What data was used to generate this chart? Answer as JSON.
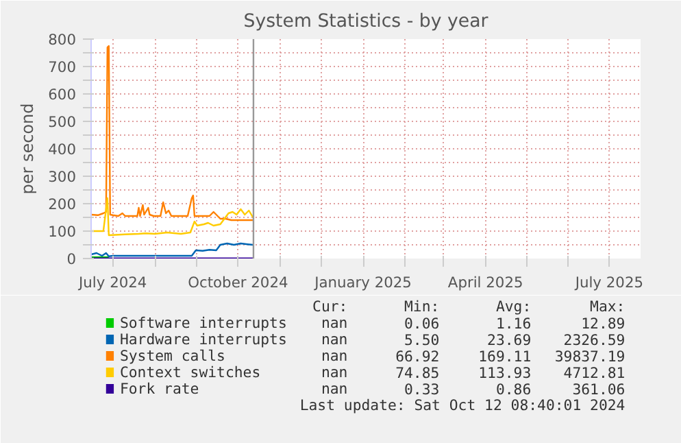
{
  "chart_data": {
    "type": "line",
    "title": "System Statistics - by year",
    "ylabel": "per second",
    "xlim": [
      "2024-06-15",
      "2025-07-24"
    ],
    "ylim": [
      0,
      800
    ],
    "yticks": [
      0,
      {
        "value": 50,
        "label": null
      },
      100,
      {
        "value": 150,
        "label": null
      },
      200,
      {
        "value": 250,
        "label": null
      },
      300,
      {
        "value": 350,
        "label": null
      },
      400,
      {
        "value": 450,
        "label": null
      },
      500,
      {
        "value": 550,
        "label": null
      },
      600,
      {
        "value": 650,
        "label": null
      },
      700,
      {
        "value": 750,
        "label": null
      },
      800
    ],
    "xticks": [
      {
        "value": "2024-07-01",
        "label": "July 2024"
      },
      {
        "value": "2024-08-01",
        "label": null
      },
      {
        "value": "2024-09-01",
        "label": null
      },
      {
        "value": "2024-10-01",
        "label": "October 2024"
      },
      {
        "value": "2024-11-01",
        "label": null
      },
      {
        "value": "2024-12-01",
        "label": null
      },
      {
        "value": "2025-01-01",
        "label": "January 2025"
      },
      {
        "value": "2025-02-01",
        "label": null
      },
      {
        "value": "2025-03-01",
        "label": null
      },
      {
        "value": "2025-04-01",
        "label": "April 2025"
      },
      {
        "value": "2025-05-01",
        "label": null
      },
      {
        "value": "2025-06-01",
        "label": null
      },
      {
        "value": "2025-07-01",
        "label": "July 2025"
      }
    ],
    "grid": true,
    "legend": "bottom",
    "line_style": "solid",
    "marker": "none",
    "ref_lines": [
      {
        "axis": "x",
        "value": "2024-10-12T08:40",
        "color": "#999999"
      }
    ],
    "series": [
      {
        "name": "Software interrupts",
        "color": "#00cc00",
        "x": [
          "2024-06-15",
          "2024-06-28"
        ],
        "values": [
          5,
          5
        ]
      },
      {
        "name": "Hardware interrupts",
        "color": "#0066b3",
        "x": [
          "2024-06-15",
          "2024-06-19",
          "2024-06-23",
          "2024-06-26",
          "2024-06-28",
          "2024-07-01",
          "2024-08-28",
          "2024-08-31",
          "2024-09-05",
          "2024-09-10",
          "2024-09-15",
          "2024-09-18",
          "2024-09-23",
          "2024-09-28",
          "2024-10-03",
          "2024-10-08",
          "2024-10-12"
        ],
        "values": [
          15,
          20,
          10,
          20,
          8,
          10,
          10,
          30,
          28,
          32,
          30,
          50,
          55,
          50,
          55,
          52,
          50
        ]
      },
      {
        "name": "System calls",
        "color": "#ff8000",
        "x": [
          "2024-06-15",
          "2024-06-20",
          "2024-06-24",
          "2024-06-26",
          "2024-06-27",
          "2024-06-28",
          "2024-06-29",
          "2024-07-01",
          "2024-07-05",
          "2024-07-08",
          "2024-07-10",
          "2024-07-15",
          "2024-07-19",
          "2024-07-20",
          "2024-07-21",
          "2024-07-23",
          "2024-07-24",
          "2024-07-27",
          "2024-07-28",
          "2024-07-31",
          "2024-08-05",
          "2024-08-07",
          "2024-08-09",
          "2024-08-11",
          "2024-08-13",
          "2024-08-20",
          "2024-08-25",
          "2024-08-28",
          "2024-08-29",
          "2024-08-30",
          "2024-09-05",
          "2024-09-10",
          "2024-09-13",
          "2024-09-15",
          "2024-09-18",
          "2024-09-22",
          "2024-09-26",
          "2024-10-01",
          "2024-10-06",
          "2024-10-12"
        ],
        "values": [
          160,
          158,
          165,
          170,
          770,
          775,
          160,
          158,
          155,
          165,
          155,
          155,
          155,
          185,
          155,
          195,
          160,
          185,
          160,
          155,
          155,
          205,
          165,
          175,
          155,
          155,
          155,
          220,
          230,
          155,
          155,
          155,
          170,
          160,
          145,
          145,
          140,
          140,
          140,
          140
        ]
      },
      {
        "name": "Context switches",
        "color": "#ffcc00",
        "x": [
          "2024-06-15",
          "2024-06-24",
          "2024-06-27",
          "2024-06-28",
          "2024-07-10",
          "2024-07-20",
          "2024-07-25",
          "2024-08-01",
          "2024-08-10",
          "2024-08-20",
          "2024-08-27",
          "2024-08-30",
          "2024-09-01",
          "2024-09-06",
          "2024-09-09",
          "2024-09-13",
          "2024-09-18",
          "2024-09-21",
          "2024-09-24",
          "2024-09-27",
          "2024-09-30",
          "2024-10-03",
          "2024-10-06",
          "2024-10-09",
          "2024-10-12"
        ],
        "values": [
          100,
          100,
          220,
          85,
          88,
          90,
          92,
          90,
          95,
          90,
          95,
          135,
          120,
          125,
          130,
          120,
          125,
          145,
          165,
          170,
          160,
          180,
          160,
          175,
          150
        ]
      },
      {
        "name": "Fork rate",
        "color": "#330099",
        "x": [
          "2024-06-15",
          "2024-10-12"
        ],
        "values": [
          1,
          1
        ]
      }
    ],
    "annotations": [
      "Cur: Min: Avg: Max:",
      "nan 0.06 1.16 12.89",
      "nan 5.50 23.69 2326.59",
      "nan 66.92 169.11 39837.19",
      "nan 74.85 113.93 4712.81",
      "nan 0.33 0.86 361.06",
      "Last update: Sat Oct 12 08:40:01 2024"
    ]
  }
}
